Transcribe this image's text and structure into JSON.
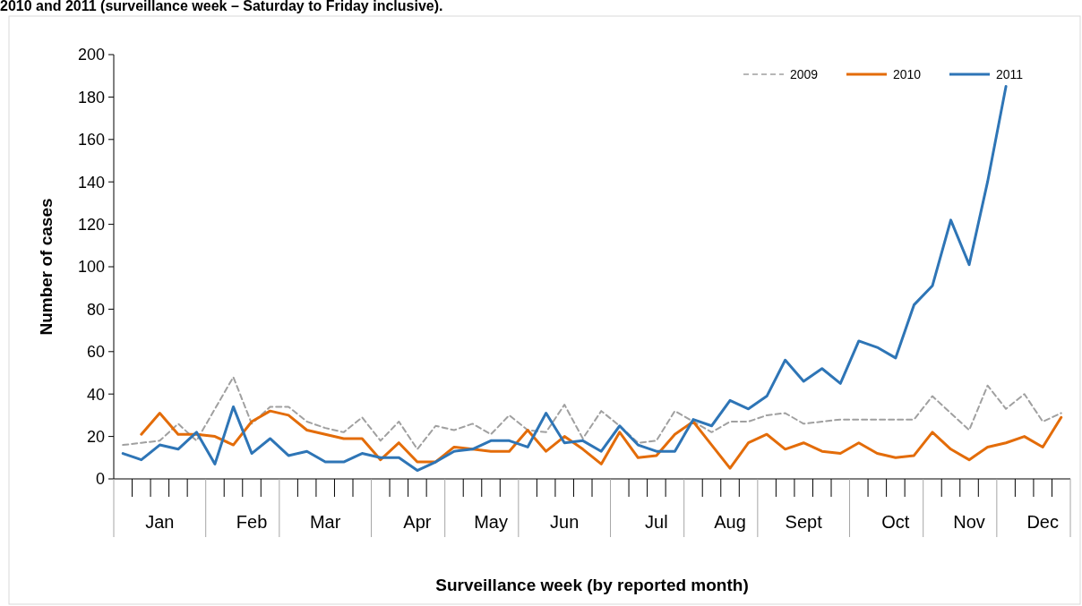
{
  "chart_data": {
    "type": "line",
    "title": "2010 and 2011 (surveillance week – Saturday to Friday inclusive).",
    "xlabel": "Surveillance week (by reported month)",
    "ylabel": "Number of cases",
    "categories": [
      null,
      null,
      "Jan",
      null,
      null,
      null,
      null,
      "Feb",
      null,
      null,
      null,
      "Mar",
      null,
      null,
      null,
      null,
      "Apr",
      null,
      null,
      null,
      "May",
      null,
      null,
      null,
      "Jun",
      null,
      null,
      null,
      null,
      "Jul",
      null,
      null,
      null,
      "Aug",
      null,
      null,
      null,
      "Sept",
      null,
      null,
      null,
      null,
      "Oct",
      null,
      null,
      null,
      "Nov",
      null,
      null,
      null,
      "Dec",
      null
    ],
    "series": [
      {
        "name": "2009",
        "color": "#a0a0a0",
        "line_style": "dashed",
        "values": [
          16,
          17,
          18,
          26,
          18,
          33,
          48,
          26,
          34,
          34,
          27,
          24,
          22,
          29,
          18,
          27,
          14,
          25,
          23,
          26,
          21,
          30,
          23,
          22,
          35,
          19,
          32,
          25,
          17,
          18,
          32,
          27,
          22,
          27,
          27,
          30,
          31,
          26,
          27,
          28,
          28,
          28,
          28,
          28,
          39,
          31,
          23,
          44,
          33,
          40,
          27,
          31
        ]
      },
      {
        "name": "2010",
        "color": "#e36c09",
        "line_style": "solid",
        "values": [
          null,
          21,
          31,
          21,
          21,
          20,
          16,
          27,
          32,
          30,
          23,
          21,
          19,
          19,
          9,
          17,
          8,
          8,
          15,
          14,
          13,
          13,
          23,
          13,
          20,
          14,
          7,
          22,
          10,
          11,
          21,
          27,
          16,
          5,
          17,
          21,
          14,
          17,
          13,
          12,
          17,
          12,
          10,
          11,
          22,
          14,
          9,
          15,
          17,
          20,
          15,
          29
        ]
      },
      {
        "name": "2011",
        "color": "#2e75b6",
        "line_style": "solid",
        "values": [
          12,
          9,
          16,
          14,
          22,
          7,
          34,
          12,
          19,
          11,
          13,
          8,
          8,
          12,
          10,
          10,
          4,
          8,
          13,
          14,
          18,
          18,
          15,
          31,
          17,
          18,
          13,
          25,
          16,
          13,
          13,
          28,
          25,
          37,
          33,
          39,
          56,
          46,
          52,
          45,
          65,
          62,
          57,
          82,
          91,
          122,
          101,
          140,
          185,
          null,
          null,
          null
        ]
      }
    ],
    "ylim": [
      0,
      200
    ],
    "yticks": [
      0,
      20,
      40,
      60,
      80,
      100,
      120,
      140,
      160,
      180,
      200
    ],
    "grid": false,
    "legend": "top right"
  }
}
